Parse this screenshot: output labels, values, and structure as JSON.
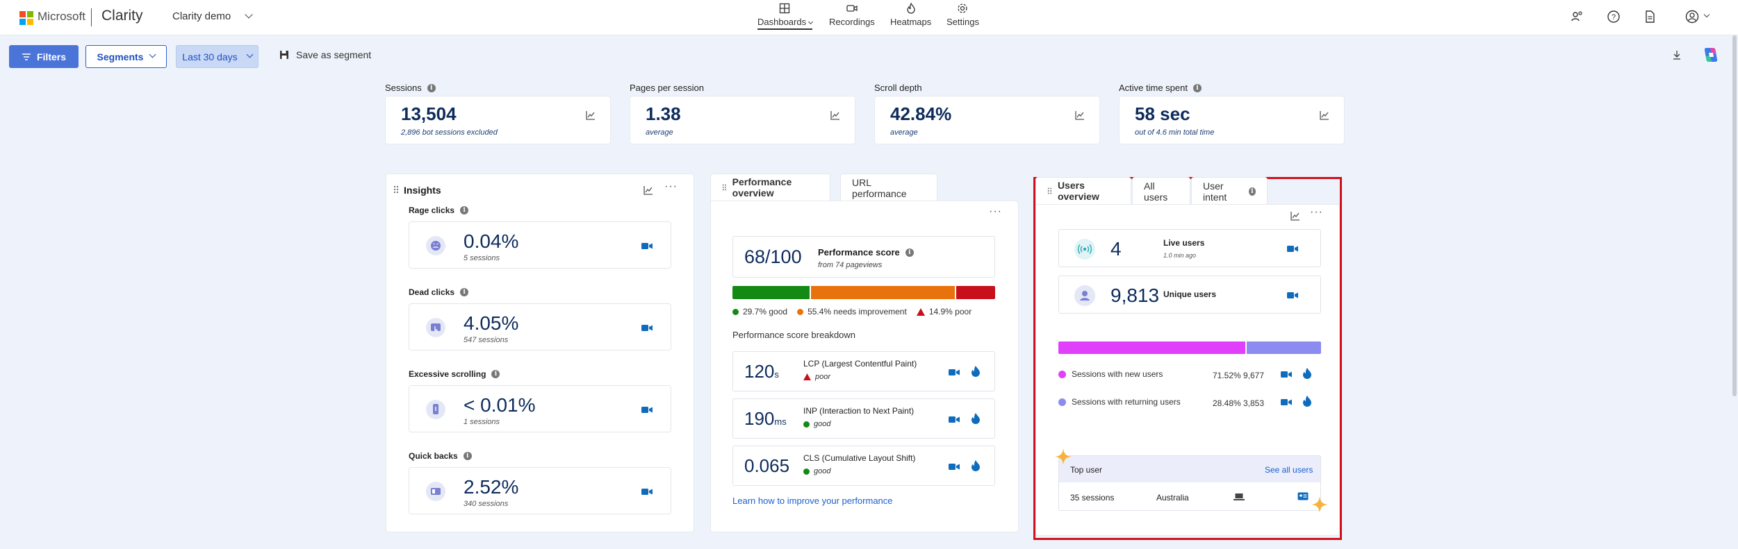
{
  "header": {
    "brand": "Microsoft",
    "app_name": "Clarity",
    "project": "Clarity demo",
    "nav": [
      {
        "label": "Dashboards",
        "icon": "dashboard-icon",
        "active": true
      },
      {
        "label": "Recordings",
        "icon": "video-icon",
        "active": false
      },
      {
        "label": "Heatmaps",
        "icon": "flame-icon",
        "active": false
      },
      {
        "label": "Settings",
        "icon": "gear-icon",
        "active": false
      }
    ]
  },
  "toolbar": {
    "filters_label": "Filters",
    "segments_label": "Segments",
    "date_label": "Last 30 days",
    "save_label": "Save as segment"
  },
  "metrics": [
    {
      "label": "Sessions",
      "value": "13,504",
      "sub": "2,896 bot sessions excluded"
    },
    {
      "label": "Pages per session",
      "value": "1.38",
      "sub": "average"
    },
    {
      "label": "Scroll depth",
      "value": "42.84%",
      "sub": "average"
    },
    {
      "label": "Active time spent",
      "value": "58 sec",
      "sub": "out of 4.6 min total time"
    }
  ],
  "insights": {
    "title": "Insights",
    "items": [
      {
        "label": "Rage clicks",
        "value": "0.04%",
        "sub": "5 sessions"
      },
      {
        "label": "Dead clicks",
        "value": "4.05%",
        "sub": "547 sessions"
      },
      {
        "label": "Excessive scrolling",
        "value": "< 0.01%",
        "sub": "1 sessions"
      },
      {
        "label": "Quick backs",
        "value": "2.52%",
        "sub": "340 sessions"
      }
    ]
  },
  "performance": {
    "tabs": [
      "Performance overview",
      "URL performance"
    ],
    "score": "68/100",
    "score_label": "Performance score",
    "score_sub": "from 74 pageviews",
    "bar": {
      "good_pct": 29.7,
      "needs_pct": 55.4,
      "poor_pct": 14.9
    },
    "colors": {
      "good": "#138a13",
      "needs": "#e8720c",
      "poor": "#c8101d"
    },
    "legend": {
      "good": "29.7% good",
      "needs": "55.4% needs improvement",
      "poor": "14.9% poor"
    },
    "breakdown_title": "Performance score breakdown",
    "rows": [
      {
        "value": "120",
        "unit": "s",
        "label": "LCP (Largest Contentful Paint)",
        "status": "poor"
      },
      {
        "value": "190",
        "unit": "ms",
        "label": "INP (Interaction to Next Paint)",
        "status": "good"
      },
      {
        "value": "0.065",
        "unit": "",
        "label": "CLS (Cumulative Layout Shift)",
        "status": "good"
      }
    ],
    "link": "Learn how to improve your performance"
  },
  "users": {
    "tabs": [
      "Users overview",
      "All users",
      "User intent"
    ],
    "live_value": "4",
    "live_label": "Live users",
    "live_sub": "1.0 min ago",
    "unique_value": "9,813",
    "unique_label": "Unique users",
    "bar": {
      "new_pct": 71.52,
      "returning_pct": 28.48
    },
    "colors": {
      "new": "#e040fb",
      "returning": "#8c8cf0"
    },
    "rows": [
      {
        "label": "Sessions with new users",
        "pct": "71.52%",
        "count": "9,677"
      },
      {
        "label": "Sessions with returning users",
        "pct": "28.48%",
        "count": "3,853"
      }
    ],
    "top_user_title": "Top user",
    "see_all": "See all users",
    "top_user": {
      "sessions": "35 sessions",
      "country": "Australia"
    }
  }
}
